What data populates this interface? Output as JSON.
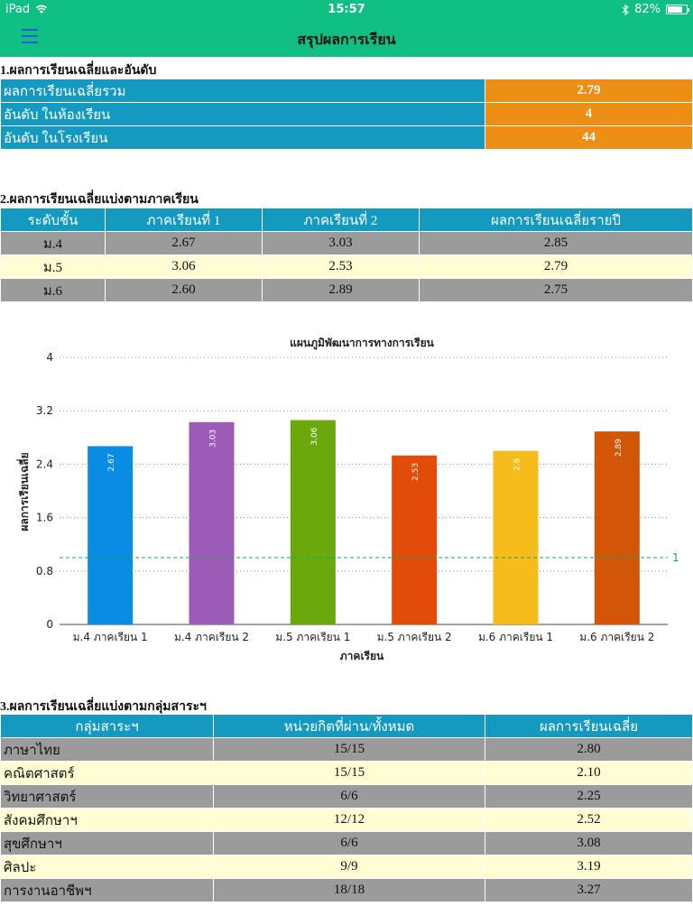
{
  "status": {
    "device": "iPad",
    "time": "15:57",
    "battery": "82%",
    "battery_level": 0.82
  },
  "nav": {
    "title": "สรุปผลการเรียน",
    "menu_icon": "hamburger-menu-icon"
  },
  "section1": {
    "title": "1.ผลการเรียนเฉลี่ยและอันดับ",
    "rows": [
      {
        "label": "ผลการเรียนเฉลี่ยรวม",
        "value": "2.79"
      },
      {
        "label": "อันดับ ในห้องเรียน",
        "value": "4"
      },
      {
        "label": "อันดับ ในโรงเรียน",
        "value": "44"
      }
    ]
  },
  "section2": {
    "title": "2.ผลการเรียนเฉลี่ยแบ่งตามภาคเรียน",
    "headers": [
      "ระดับชั้น",
      "ภาคเรียนที่ 1",
      "ภาคเรียนที่ 2",
      "ผลการเรียนเฉลี่ยรายปี"
    ],
    "rows": [
      [
        "ม.4",
        "2.67",
        "3.03",
        "2.85"
      ],
      [
        "ม.5",
        "3.06",
        "2.53",
        "2.79"
      ],
      [
        "ม.6",
        "2.60",
        "2.89",
        "2.75"
      ]
    ]
  },
  "chart_data": {
    "type": "bar",
    "title": "แผนภูมิพัฒนาการทางการเรียน",
    "xlabel": "ภาคเรียน",
    "ylabel": "ผลการเรียนเฉลี่ย",
    "ylim": [
      0,
      4
    ],
    "yticks": [
      "0",
      "0.8",
      "1.6",
      "2.4",
      "3.2",
      "4"
    ],
    "grid": true,
    "categories": [
      "ม.4 ภาคเรียน 1",
      "ม.4 ภาคเรียน 2",
      "ม.5 ภาคเรียน 1",
      "ม.5 ภาคเรียน 2",
      "ม.6 ภาคเรียน 1",
      "ม.6 ภาคเรียน 2"
    ],
    "values": [
      2.67,
      3.03,
      3.06,
      2.53,
      2.6,
      2.89
    ],
    "value_labels": [
      "2.67",
      "3.03",
      "3.06",
      "2.53",
      "2.6",
      "2.89"
    ],
    "colors": [
      "#0a8be4",
      "#9b5bb6",
      "#6aa80c",
      "#e24b0a",
      "#f6bc1c",
      "#d25508"
    ],
    "reference_line": {
      "value": 1,
      "label": "1",
      "color": "#10ac63"
    }
  },
  "section3": {
    "title": "3.ผลการเรียนเฉลี่ยแบ่งตามกลุ่มสาระฯ",
    "headers": [
      "กลุ่มสาระฯ",
      "หน่วยกิตที่ผ่าน/ทั้งหมด",
      "ผลการเรียนเฉลี่ย"
    ],
    "rows": [
      [
        "ภาษาไทย",
        "15/15",
        "2.80"
      ],
      [
        "คณิตศาสตร์",
        "15/15",
        "2.10"
      ],
      [
        "วิทยาศาสตร์",
        "6/6",
        "2.25"
      ],
      [
        "สังคมศึกษาฯ",
        "12/12",
        "2.52"
      ],
      [
        "สุขศึกษาฯ",
        "6/6",
        "3.08"
      ],
      [
        "ศิลปะ",
        "9/9",
        "3.19"
      ],
      [
        "การงานอาชีพฯ",
        "18/18",
        "3.27"
      ]
    ]
  }
}
